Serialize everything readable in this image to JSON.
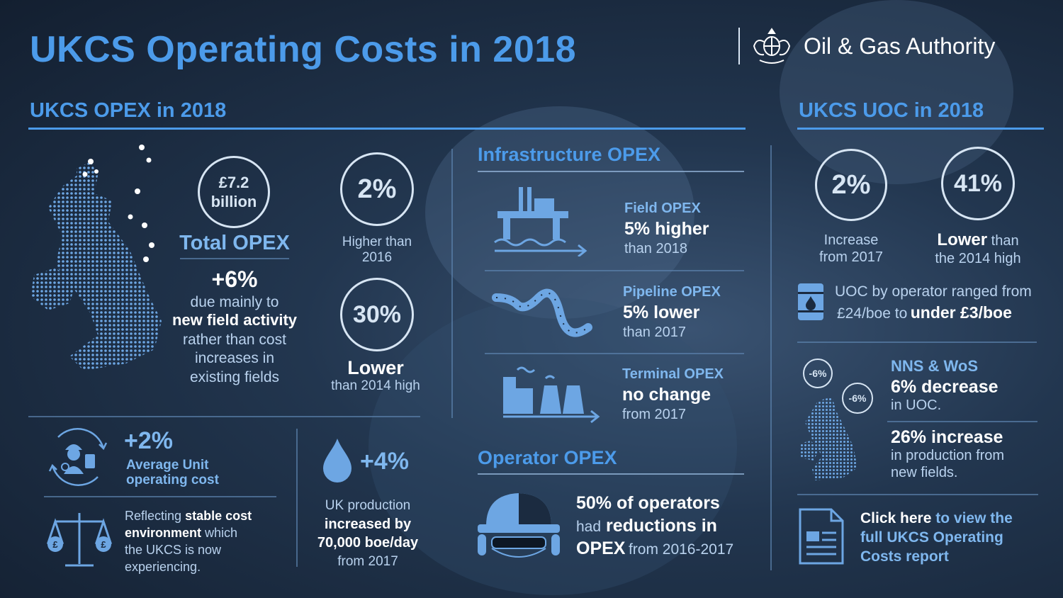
{
  "header": {
    "title": "UKCS Operating Costs in 2018",
    "logo_text": "Oil & Gas Authority"
  },
  "opex": {
    "heading": "UKCS OPEX in 2018",
    "total_value_line1": "£7.2",
    "total_value_line2": "billion",
    "total_label": "Total OPEX",
    "total_change": "+6%",
    "total_desc_1": "due mainly to",
    "total_desc_2": "new field activity",
    "total_desc_3": "rather than cost",
    "total_desc_4": "increases in",
    "total_desc_5": "existing fields",
    "higher_value": "2%",
    "higher_desc_1": "Higher than",
    "higher_desc_2": "2016",
    "lower_value": "30%",
    "lower_label": "Lower",
    "lower_desc": "than 2014 high",
    "unit_change": "+2%",
    "unit_label_1": "Average Unit",
    "unit_label_2": "operating cost",
    "stable_1": "Reflecting",
    "stable_2": "stable cost",
    "stable_3": "environment",
    "stable_4": "which",
    "stable_5": "the UKCS is now",
    "stable_6": "experiencing.",
    "prod_change": "+4%",
    "prod_1": "UK production",
    "prod_2": "increased by",
    "prod_3": "70,000 boe/day",
    "prod_4": "from 2017"
  },
  "infra": {
    "heading": "Infrastructure OPEX",
    "field_title": "Field OPEX",
    "field_value": "5% higher",
    "field_sub": "than 2018",
    "pipeline_title": "Pipeline OPEX",
    "pipeline_value": "5% lower",
    "pipeline_sub": "than 2017",
    "terminal_title": "Terminal OPEX",
    "terminal_value": "no change",
    "terminal_sub": "from 2017"
  },
  "operator": {
    "heading": "Operator OPEX",
    "line1": "50% of operators",
    "line2a": "had",
    "line2b": "reductions in",
    "line3a": "OPEX",
    "line3b": "from 2016-2017"
  },
  "uoc": {
    "heading": "UKCS UOC in 2018",
    "increase_value": "2%",
    "increase_desc_1": "Increase",
    "increase_desc_2": "from 2017",
    "lower_value": "41%",
    "lower_word": "Lower",
    "lower_desc_1": "than",
    "lower_desc_2": "the 2014 high",
    "range_1": "UOC by operator ranged from",
    "range_2a": "£24/boe to",
    "range_2b": "under £3/boe",
    "badge": "-6%",
    "badge2": "-6%",
    "nns_title": "NNS & WoS",
    "nns_value": "6% decrease",
    "nns_sub": "in UOC.",
    "newfield_value": "26% increase",
    "newfield_sub_1": "in production from",
    "newfield_sub_2": "new fields.",
    "click_1a": "Click here",
    "click_1b": "to view the",
    "click_2": "full UKCS Operating",
    "click_3": "Costs report"
  },
  "colors": {
    "accent": "#4c9bea",
    "text": "#b9d2ee",
    "white": "#ffffff",
    "background": "#1b2b40"
  }
}
